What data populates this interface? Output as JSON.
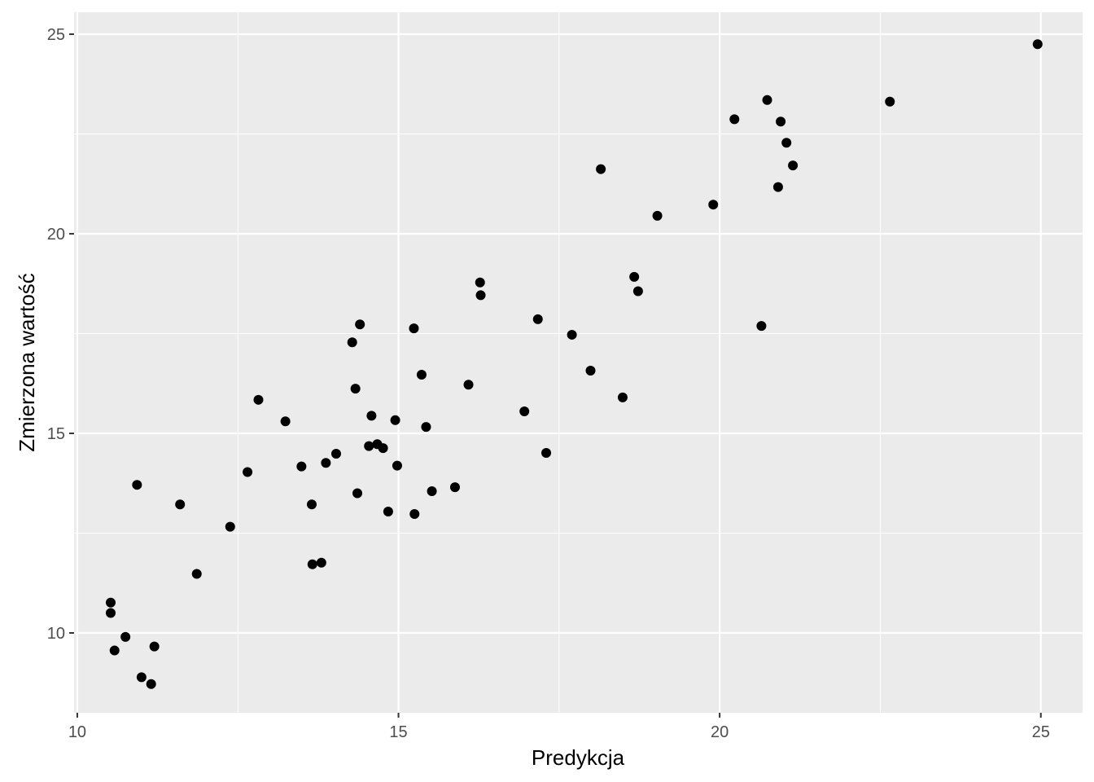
{
  "chart_data": {
    "type": "scatter",
    "xlabel": "Predykcja",
    "ylabel": "Zmierzona wartość",
    "xlim": [
      9.95,
      25.65
    ],
    "ylim": [
      8.0,
      25.55
    ],
    "x_ticks": [
      10,
      15,
      20,
      25
    ],
    "y_ticks": [
      10,
      15,
      20,
      25
    ],
    "x_tick_labels": [
      "10",
      "15",
      "20",
      "25"
    ],
    "y_tick_labels": [
      "10",
      "15",
      "20",
      "25"
    ],
    "grid": true,
    "legend": "none",
    "colors": {
      "panel": "#ebebeb",
      "grid": "#ffffff",
      "point": "#000000"
    },
    "points": [
      {
        "x": 10.52,
        "y": 10.76
      },
      {
        "x": 10.52,
        "y": 10.5
      },
      {
        "x": 10.58,
        "y": 9.56
      },
      {
        "x": 10.75,
        "y": 9.9
      },
      {
        "x": 10.93,
        "y": 13.71
      },
      {
        "x": 11.0,
        "y": 8.89
      },
      {
        "x": 11.15,
        "y": 8.72
      },
      {
        "x": 11.2,
        "y": 9.66
      },
      {
        "x": 11.6,
        "y": 13.22
      },
      {
        "x": 11.86,
        "y": 11.48
      },
      {
        "x": 12.38,
        "y": 12.66
      },
      {
        "x": 12.65,
        "y": 14.03
      },
      {
        "x": 12.82,
        "y": 15.84
      },
      {
        "x": 13.24,
        "y": 15.3
      },
      {
        "x": 13.49,
        "y": 14.17
      },
      {
        "x": 13.65,
        "y": 13.22
      },
      {
        "x": 13.66,
        "y": 11.72
      },
      {
        "x": 13.8,
        "y": 11.76
      },
      {
        "x": 13.87,
        "y": 14.26
      },
      {
        "x": 14.03,
        "y": 14.49
      },
      {
        "x": 14.28,
        "y": 17.28
      },
      {
        "x": 14.33,
        "y": 16.12
      },
      {
        "x": 14.36,
        "y": 13.5
      },
      {
        "x": 14.4,
        "y": 17.73
      },
      {
        "x": 14.54,
        "y": 14.68
      },
      {
        "x": 14.58,
        "y": 15.44
      },
      {
        "x": 14.67,
        "y": 14.73
      },
      {
        "x": 14.76,
        "y": 14.63
      },
      {
        "x": 14.84,
        "y": 13.04
      },
      {
        "x": 14.95,
        "y": 15.33
      },
      {
        "x": 14.98,
        "y": 14.19
      },
      {
        "x": 15.24,
        "y": 17.63
      },
      {
        "x": 15.25,
        "y": 12.98
      },
      {
        "x": 15.36,
        "y": 16.47
      },
      {
        "x": 15.43,
        "y": 15.16
      },
      {
        "x": 15.52,
        "y": 13.55
      },
      {
        "x": 15.88,
        "y": 13.65
      },
      {
        "x": 16.09,
        "y": 16.22
      },
      {
        "x": 16.27,
        "y": 18.78
      },
      {
        "x": 16.28,
        "y": 18.46
      },
      {
        "x": 16.96,
        "y": 15.55
      },
      {
        "x": 17.17,
        "y": 17.86
      },
      {
        "x": 17.3,
        "y": 14.51
      },
      {
        "x": 17.7,
        "y": 17.47
      },
      {
        "x": 17.99,
        "y": 16.57
      },
      {
        "x": 18.15,
        "y": 21.62
      },
      {
        "x": 18.49,
        "y": 15.9
      },
      {
        "x": 18.67,
        "y": 18.92
      },
      {
        "x": 18.73,
        "y": 18.56
      },
      {
        "x": 19.03,
        "y": 20.45
      },
      {
        "x": 19.9,
        "y": 20.73
      },
      {
        "x": 20.23,
        "y": 22.87
      },
      {
        "x": 20.65,
        "y": 17.69
      },
      {
        "x": 20.74,
        "y": 23.35
      },
      {
        "x": 20.91,
        "y": 21.17
      },
      {
        "x": 20.95,
        "y": 22.81
      },
      {
        "x": 21.04,
        "y": 22.28
      },
      {
        "x": 21.14,
        "y": 21.71
      },
      {
        "x": 22.65,
        "y": 23.31
      },
      {
        "x": 24.95,
        "y": 24.75
      }
    ]
  }
}
